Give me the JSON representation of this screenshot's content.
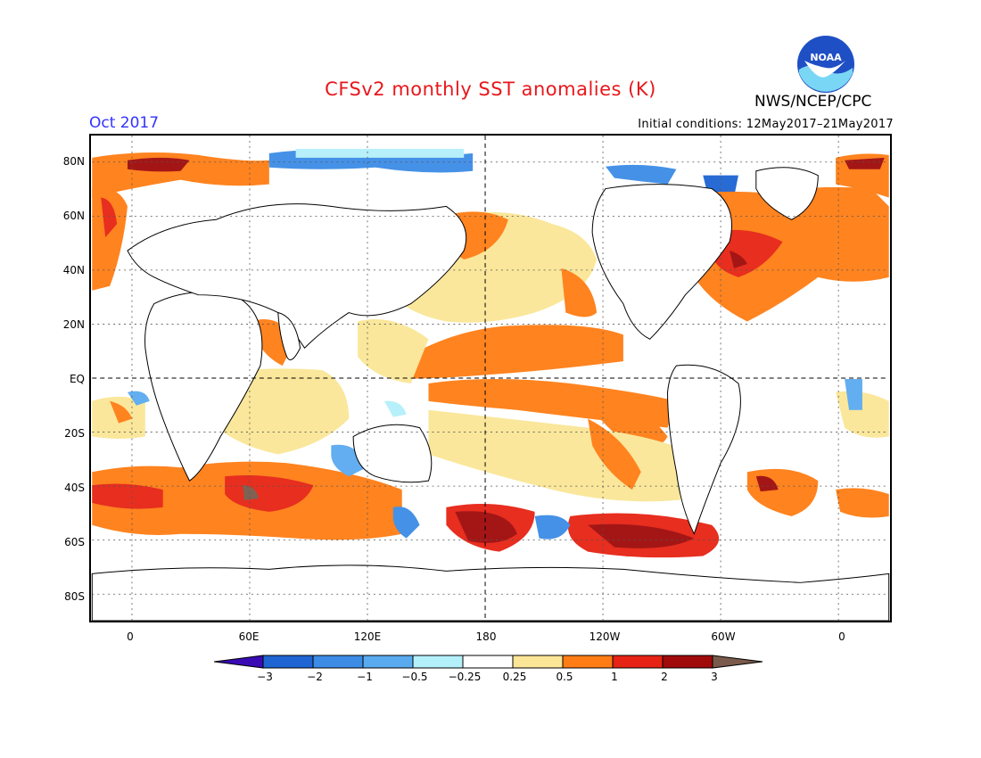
{
  "title": "CFSv2 monthly SST anomalies (K)",
  "agency": "NWS/NCEP/CPC",
  "logo_text": "NOAA",
  "valid_month": "Oct 2017",
  "initial_conditions": "Initial conditions: 12May2017–21May2017",
  "map": {
    "lat_labels": [
      "80N",
      "60N",
      "40N",
      "20N",
      "EQ",
      "20S",
      "40S",
      "60S",
      "80S"
    ],
    "lon_labels": [
      "0",
      "60E",
      "120E",
      "180",
      "120W",
      "60W",
      "0"
    ],
    "dashed_reference_lines": [
      "EQ",
      "180"
    ]
  },
  "colorbar": {
    "labels": [
      "−3",
      "−2",
      "−1",
      "−0.5",
      "−0.25",
      "0.25",
      "0.5",
      "1",
      "2",
      "3"
    ],
    "colors": [
      "#3a0ab5",
      "#1e64d2",
      "#3c8ce6",
      "#5aaaf0",
      "#b4f0fa",
      "#ffffff",
      "#fae696",
      "#ff7d14",
      "#e62314",
      "#a00a0a",
      "#7a5a4a"
    ]
  }
}
